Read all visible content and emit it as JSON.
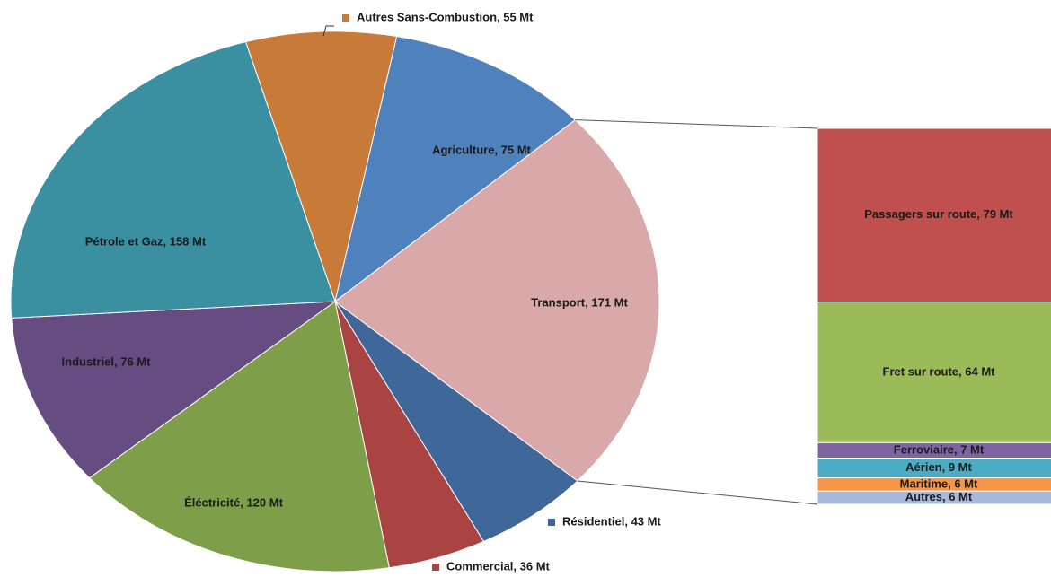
{
  "chart_data": {
    "type": "pie-of-bar",
    "slices": [
      {
        "label": "Autres Sans-Combustion, 55 Mt",
        "value": 55,
        "color": "#c87a38"
      },
      {
        "label": "Agriculture, 75 Mt",
        "value": 75,
        "color": "#4f81bd"
      },
      {
        "label": "Transport, 171 Mt",
        "value": 171,
        "color": "#d9a9a9"
      },
      {
        "label": "Résidentiel, 43 Mt",
        "value": 43,
        "color": "#3f6799"
      },
      {
        "label": "Commercial, 36 Mt",
        "value": 36,
        "color": "#a94442"
      },
      {
        "label": "Éléctricité, 120 Mt",
        "value": 120,
        "color": "#7f9e4a"
      },
      {
        "label": "Industriel, 76 Mt",
        "value": 76,
        "color": "#654d82"
      },
      {
        "label": "Pétrole et Gaz, 158 Mt",
        "value": 158,
        "color": "#3a8fa0"
      }
    ],
    "breakdown": [
      {
        "label": "Passagers sur route, 79 Mt",
        "value": 79,
        "color": "#c0504d"
      },
      {
        "label": "Fret sur route, 64 Mt",
        "value": 64,
        "color": "#9bbb59"
      },
      {
        "label": "Ferroviaire, 7 Mt",
        "value": 7,
        "color": "#8064a2"
      },
      {
        "label": "Aérien, 9 Mt",
        "value": 9,
        "color": "#4bacc6"
      },
      {
        "label": "Maritime, 6 Mt",
        "value": 6,
        "color": "#f79646"
      },
      {
        "label": "Autres, 6 Mt",
        "value": 6,
        "color": "#a9b9d9"
      }
    ]
  }
}
